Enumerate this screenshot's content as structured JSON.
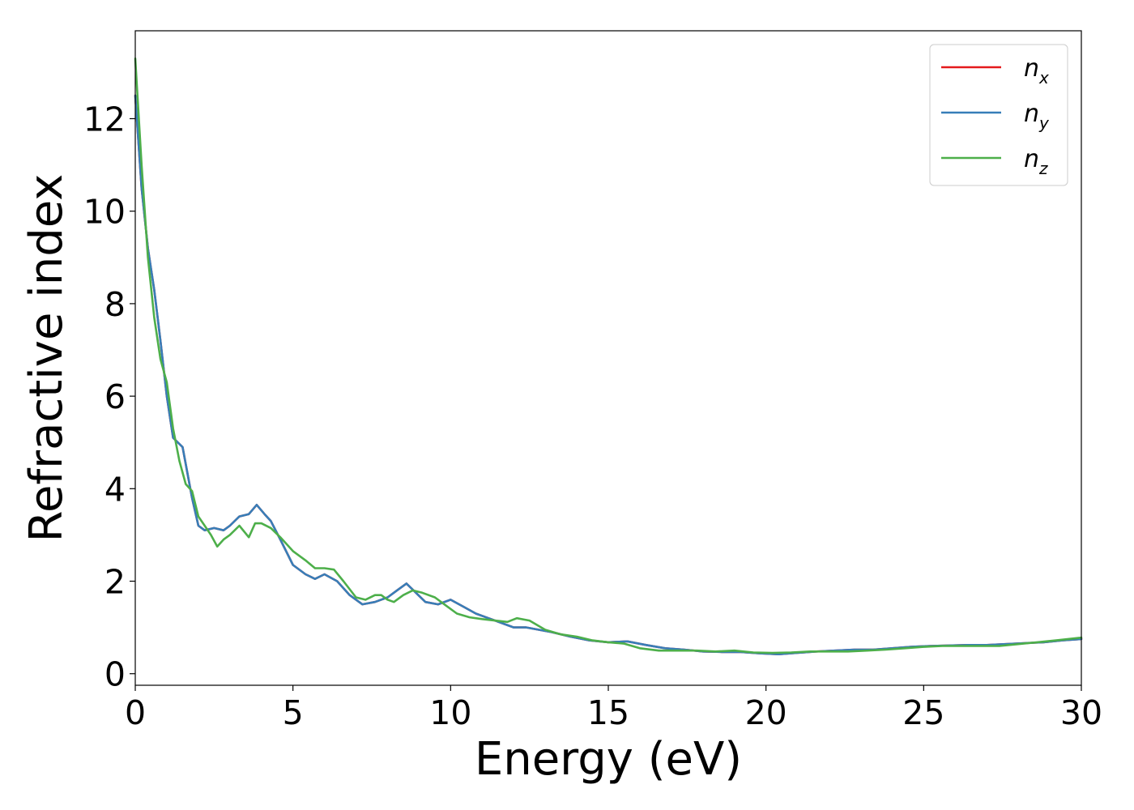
{
  "chart_data": {
    "type": "line",
    "xlabel": "Energy (eV)",
    "ylabel": "Refractive index",
    "xlim": [
      0,
      30
    ],
    "ylim": [
      -0.25,
      13.9
    ],
    "xticks": [
      0,
      5,
      10,
      15,
      20,
      25,
      30
    ],
    "xtick_labels": [
      "0",
      "5",
      "10",
      "15",
      "20",
      "25",
      "30"
    ],
    "yticks": [
      0,
      2,
      4,
      6,
      8,
      10,
      12
    ],
    "ytick_labels": [
      "0",
      "2",
      "4",
      "6",
      "8",
      "10",
      "12"
    ],
    "grid": false,
    "legend_position": "top-right",
    "series": [
      {
        "name": "n_x",
        "legend_base": "n",
        "legend_sub": "x",
        "color": "#e41a1c",
        "x": [
          0.0,
          0.2,
          0.4,
          0.6,
          0.8,
          1.0,
          1.2,
          1.5,
          1.8,
          2.0,
          2.2,
          2.5,
          2.8,
          3.0,
          3.3,
          3.6,
          3.85,
          4.1,
          4.3,
          4.6,
          5.0,
          5.4,
          5.7,
          6.0,
          6.4,
          6.8,
          7.2,
          7.6,
          8.0,
          8.3,
          8.6,
          8.9,
          9.2,
          9.6,
          10.0,
          10.4,
          10.8,
          11.2,
          11.6,
          12.0,
          12.4,
          12.8,
          13.2,
          13.8,
          14.4,
          15.0,
          15.6,
          16.2,
          16.8,
          17.4,
          18.0,
          18.6,
          19.2,
          19.8,
          20.4,
          21.0,
          21.6,
          22.2,
          22.8,
          23.4,
          24.0,
          24.6,
          25.2,
          25.8,
          26.4,
          27.0,
          27.6,
          28.2,
          28.8,
          29.4,
          30.0
        ],
        "y": [
          12.5,
          10.5,
          9.2,
          8.3,
          7.2,
          6.0,
          5.1,
          4.9,
          3.8,
          3.2,
          3.1,
          3.15,
          3.1,
          3.2,
          3.4,
          3.45,
          3.65,
          3.45,
          3.3,
          2.9,
          2.35,
          2.15,
          2.05,
          2.15,
          2.0,
          1.7,
          1.5,
          1.55,
          1.65,
          1.8,
          1.95,
          1.75,
          1.55,
          1.5,
          1.6,
          1.45,
          1.3,
          1.2,
          1.1,
          1.0,
          1.0,
          0.95,
          0.9,
          0.8,
          0.72,
          0.68,
          0.7,
          0.62,
          0.55,
          0.52,
          0.48,
          0.47,
          0.47,
          0.44,
          0.42,
          0.45,
          0.48,
          0.5,
          0.52,
          0.52,
          0.55,
          0.58,
          0.6,
          0.61,
          0.62,
          0.62,
          0.64,
          0.66,
          0.68,
          0.72,
          0.75
        ]
      },
      {
        "name": "n_y",
        "legend_base": "n",
        "legend_sub": "y",
        "color": "#377eb8",
        "x": [
          0.0,
          0.2,
          0.4,
          0.6,
          0.8,
          1.0,
          1.2,
          1.5,
          1.8,
          2.0,
          2.2,
          2.5,
          2.8,
          3.0,
          3.3,
          3.6,
          3.85,
          4.1,
          4.3,
          4.6,
          5.0,
          5.4,
          5.7,
          6.0,
          6.4,
          6.8,
          7.2,
          7.6,
          8.0,
          8.3,
          8.6,
          8.9,
          9.2,
          9.6,
          10.0,
          10.4,
          10.8,
          11.2,
          11.6,
          12.0,
          12.4,
          12.8,
          13.2,
          13.8,
          14.4,
          15.0,
          15.6,
          16.2,
          16.8,
          17.4,
          18.0,
          18.6,
          19.2,
          19.8,
          20.4,
          21.0,
          21.6,
          22.2,
          22.8,
          23.4,
          24.0,
          24.6,
          25.2,
          25.8,
          26.4,
          27.0,
          27.6,
          28.2,
          28.8,
          29.4,
          30.0
        ],
        "y": [
          12.5,
          10.5,
          9.2,
          8.3,
          7.2,
          6.0,
          5.1,
          4.9,
          3.8,
          3.2,
          3.1,
          3.15,
          3.1,
          3.2,
          3.4,
          3.45,
          3.65,
          3.45,
          3.3,
          2.9,
          2.35,
          2.15,
          2.05,
          2.15,
          2.0,
          1.7,
          1.5,
          1.55,
          1.65,
          1.8,
          1.95,
          1.75,
          1.55,
          1.5,
          1.6,
          1.45,
          1.3,
          1.2,
          1.1,
          1.0,
          1.0,
          0.95,
          0.9,
          0.8,
          0.72,
          0.68,
          0.7,
          0.62,
          0.55,
          0.52,
          0.48,
          0.47,
          0.47,
          0.44,
          0.42,
          0.45,
          0.48,
          0.5,
          0.52,
          0.52,
          0.55,
          0.58,
          0.6,
          0.61,
          0.62,
          0.62,
          0.64,
          0.66,
          0.68,
          0.72,
          0.75
        ]
      },
      {
        "name": "n_z",
        "legend_base": "n",
        "legend_sub": "z",
        "color": "#4daf4a",
        "x": [
          0.0,
          0.2,
          0.4,
          0.6,
          0.8,
          1.0,
          1.2,
          1.4,
          1.6,
          1.8,
          2.0,
          2.2,
          2.4,
          2.6,
          2.8,
          3.0,
          3.3,
          3.6,
          3.8,
          4.0,
          4.3,
          4.6,
          5.0,
          5.4,
          5.7,
          6.0,
          6.3,
          6.6,
          7.0,
          7.3,
          7.6,
          7.8,
          8.0,
          8.2,
          8.5,
          8.8,
          9.1,
          9.5,
          9.8,
          10.2,
          10.6,
          11.0,
          11.4,
          11.8,
          12.1,
          12.5,
          13.0,
          13.5,
          14.0,
          14.5,
          15.0,
          15.5,
          16.0,
          16.6,
          17.2,
          17.8,
          18.4,
          19.0,
          19.6,
          20.2,
          20.8,
          21.4,
          22.0,
          22.6,
          23.2,
          23.8,
          24.4,
          25.0,
          25.6,
          26.2,
          26.8,
          27.4,
          28.0,
          28.6,
          29.2,
          30.0
        ],
        "y": [
          13.3,
          11.0,
          9.0,
          7.7,
          6.8,
          6.3,
          5.3,
          4.6,
          4.1,
          3.95,
          3.4,
          3.2,
          3.0,
          2.75,
          2.9,
          3.0,
          3.2,
          2.95,
          3.25,
          3.25,
          3.15,
          2.95,
          2.65,
          2.45,
          2.28,
          2.28,
          2.25,
          2.0,
          1.65,
          1.6,
          1.7,
          1.7,
          1.6,
          1.55,
          1.7,
          1.8,
          1.75,
          1.65,
          1.5,
          1.3,
          1.22,
          1.18,
          1.15,
          1.12,
          1.2,
          1.15,
          0.95,
          0.85,
          0.8,
          0.72,
          0.68,
          0.65,
          0.55,
          0.5,
          0.5,
          0.5,
          0.48,
          0.5,
          0.46,
          0.45,
          0.46,
          0.48,
          0.48,
          0.48,
          0.5,
          0.52,
          0.55,
          0.58,
          0.6,
          0.6,
          0.6,
          0.6,
          0.64,
          0.68,
          0.72,
          0.78
        ]
      }
    ]
  }
}
